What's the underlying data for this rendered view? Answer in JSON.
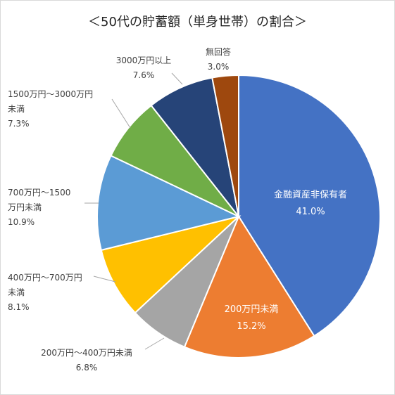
{
  "chart_data": {
    "type": "pie",
    "title": "＜50代の貯蓄額（単身世帯）の割合＞",
    "start": "12 o'clock, clockwise",
    "slices": [
      {
        "label": "金融資産非保有者",
        "value": 41.0,
        "value_label": "41.0%",
        "color": "#4472C4",
        "label_position": "inside"
      },
      {
        "label": "200万円未満",
        "value": 15.2,
        "value_label": "15.2%",
        "color": "#ED7D31",
        "label_position": "inside"
      },
      {
        "label": "200万円～400万円未満",
        "value": 6.8,
        "value_label": "6.8%",
        "color": "#A5A5A5",
        "label_position": "outside"
      },
      {
        "label": "400万円～700万円未満",
        "value": 8.1,
        "value_label": "8.1%",
        "color": "#FFC000",
        "label_position": "outside"
      },
      {
        "label": "700万円～1500万円未満",
        "value": 10.9,
        "value_label": "10.9%",
        "color": "#5B9BD5",
        "label_position": "outside"
      },
      {
        "label": "1500万円～3000万円未満",
        "value": 7.3,
        "value_label": "7.3%",
        "color": "#70AD47",
        "label_position": "outside"
      },
      {
        "label": "3000万円以上",
        "value": 7.6,
        "value_label": "7.6%",
        "color": "#264478",
        "label_position": "outside"
      },
      {
        "label": "無回答",
        "value": 3.0,
        "value_label": "3.0%",
        "color": "#9E480E",
        "label_position": "outside"
      }
    ]
  }
}
